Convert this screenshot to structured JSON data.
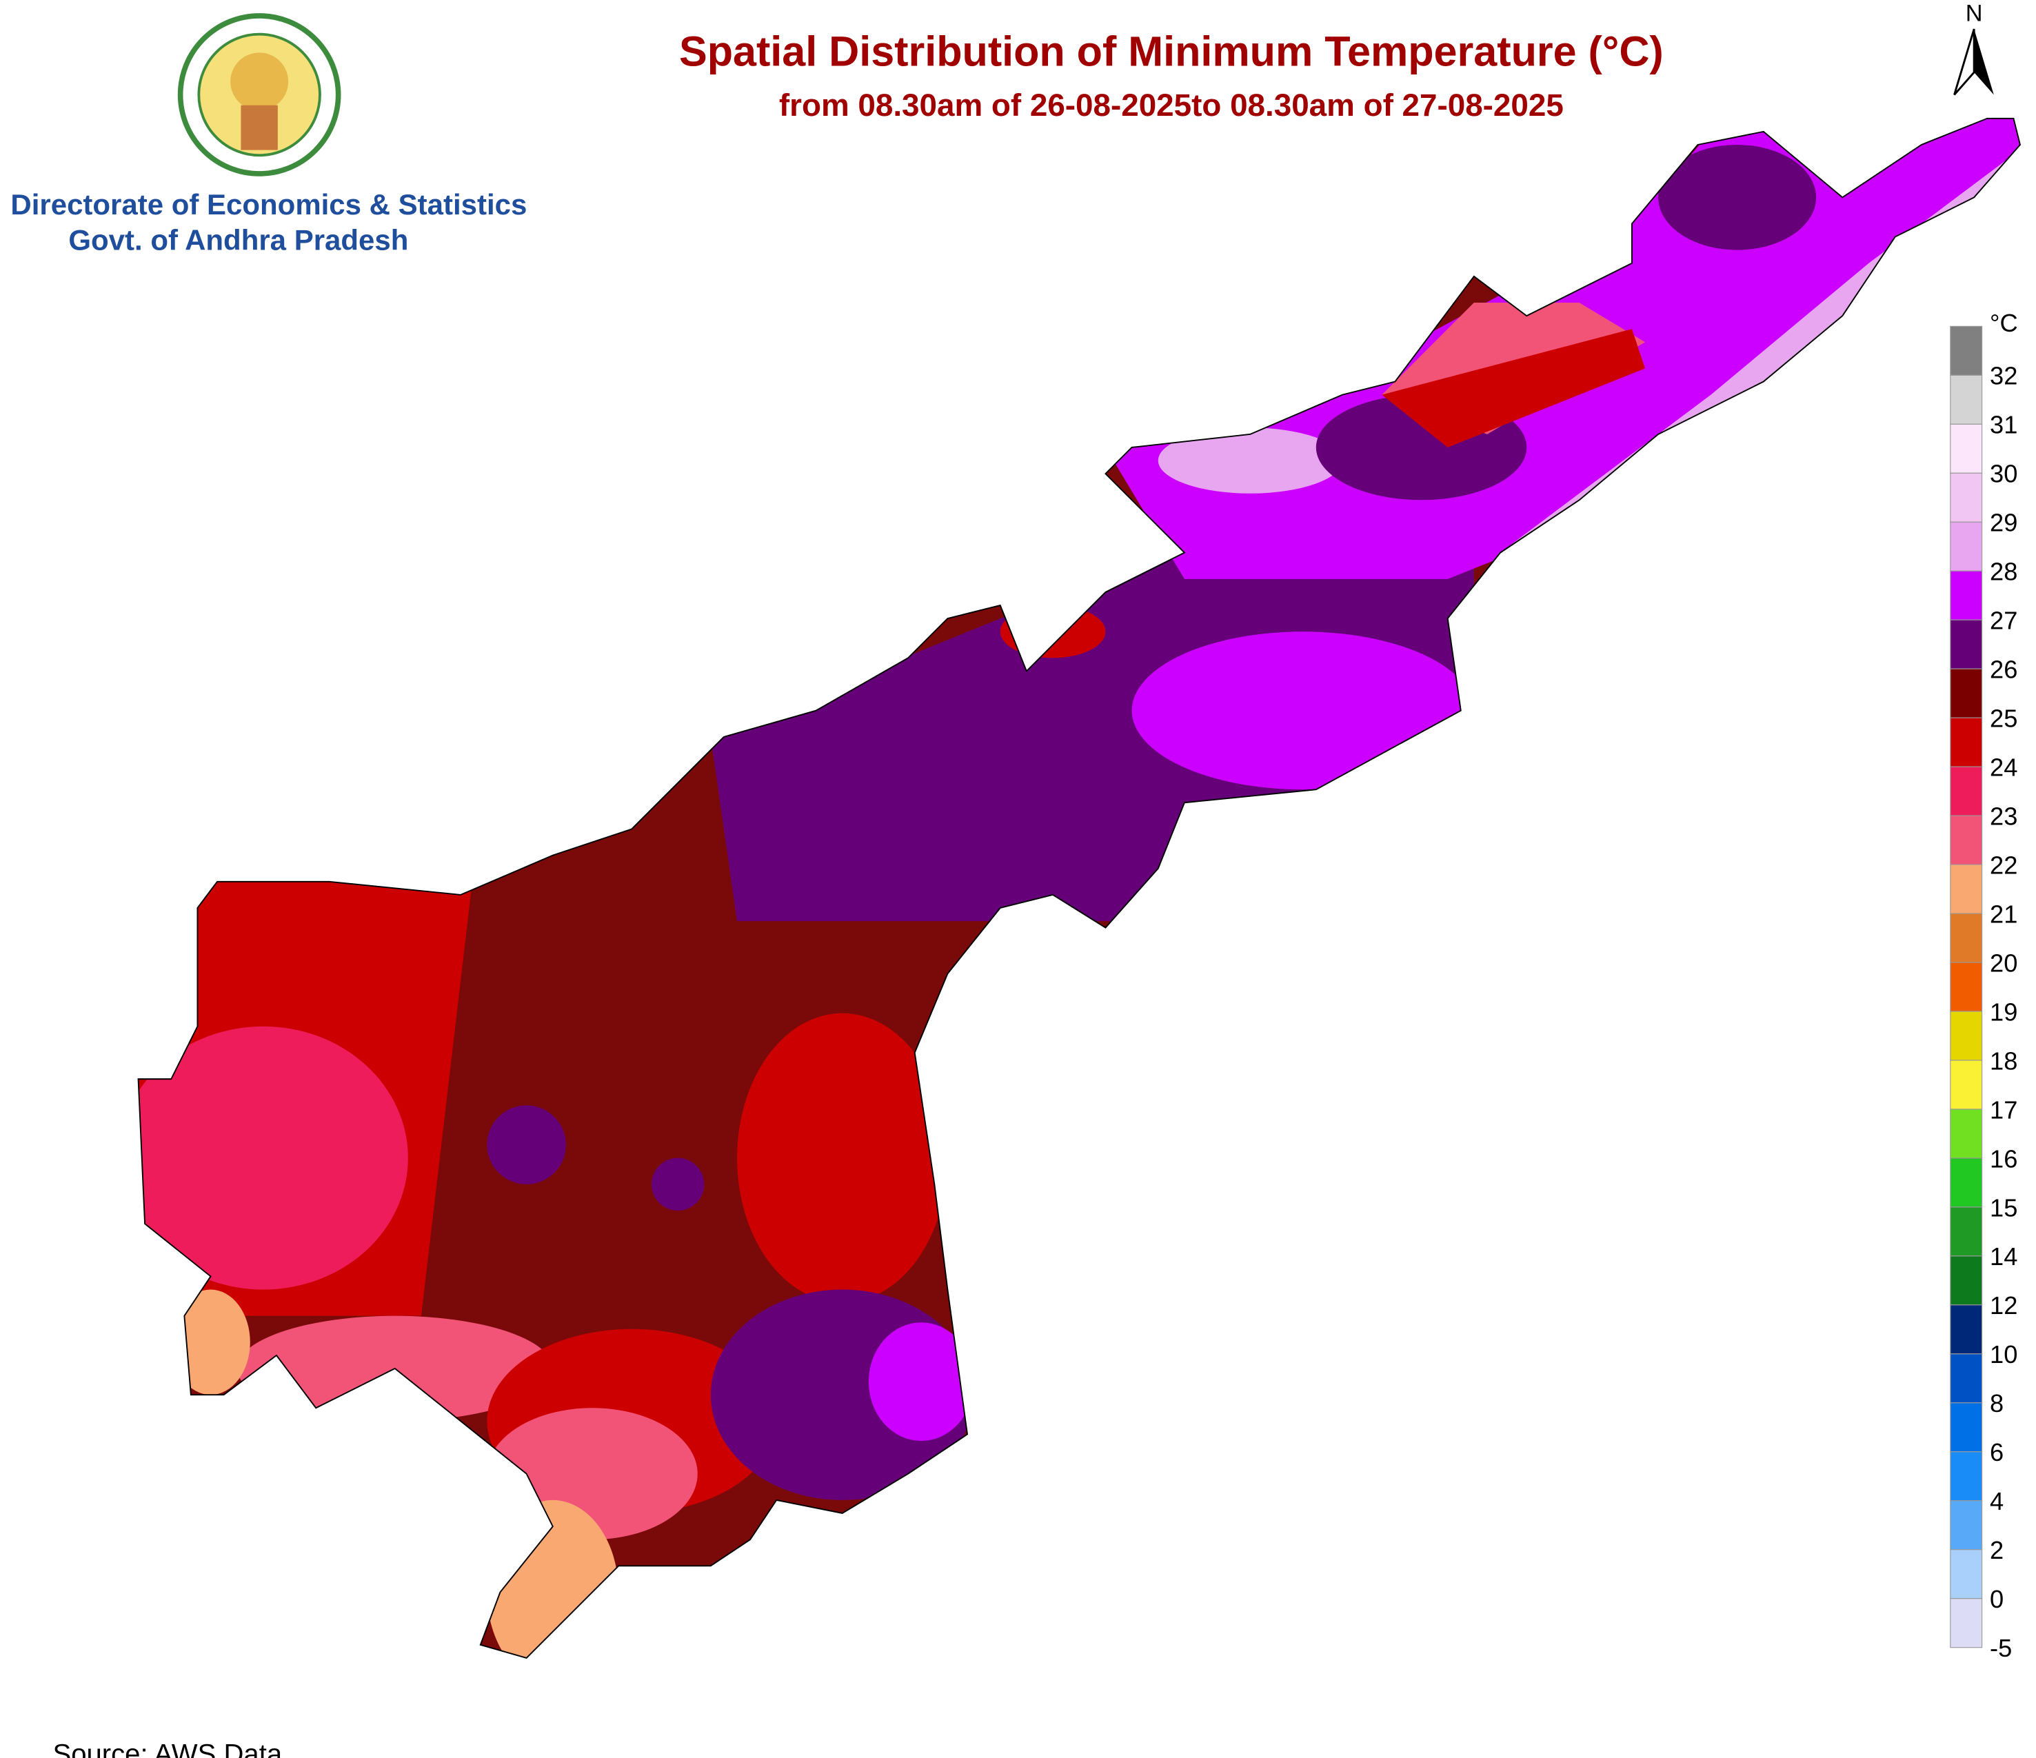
{
  "header": {
    "title": "Spatial Distribution of Minimum Temperature (°C)",
    "subtitle": "from 08.30am of 26-08-2025to 08.30am of 27-08-2025",
    "organization": [
      "Directorate of Economics & Statistics",
      "Govt. of Andhra Pradesh"
    ]
  },
  "north": "N",
  "legend": {
    "unit": "°C",
    "labels": [
      32,
      31,
      30,
      29,
      28,
      27,
      26,
      25,
      24,
      23,
      22,
      21,
      20,
      19,
      18,
      17,
      16,
      15,
      14,
      12,
      10,
      8,
      6,
      4,
      2,
      0,
      -5
    ],
    "colors": [
      "#808080",
      "#d4d4d4",
      "#fbe6fb",
      "#f2c6f2",
      "#e8a6f0",
      "#cc00ff",
      "#650078",
      "#7a0000",
      "#cc0000",
      "#ee1c5a",
      "#f25478",
      "#f8a870",
      "#e07a28",
      "#f25c00",
      "#e6d600",
      "#faf034",
      "#70e020",
      "#22c822",
      "#1f9a24",
      "#0e7a1e",
      "#002878",
      "#0052c4",
      "#0070e6",
      "#1a8cf8",
      "#58aaf8",
      "#a8d0fa",
      "#dcdcf6",
      "#eeeeee"
    ]
  },
  "source": "Source: AWS Data"
}
